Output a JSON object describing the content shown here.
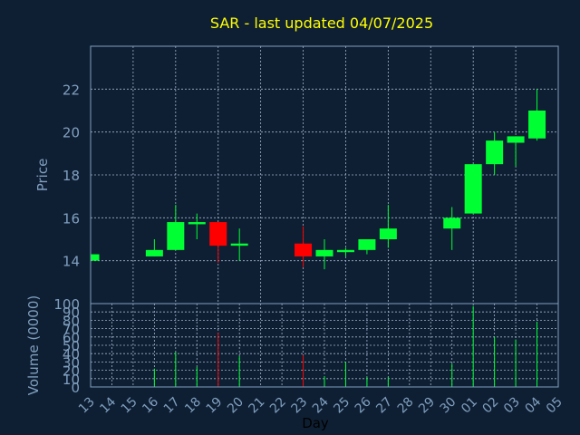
{
  "chart_data": {
    "type": "candlestick",
    "title": "SAR - last updated 04/07/2025",
    "xlabel": "Day",
    "ylabel_price": "Price",
    "ylabel_volume": "Volume (0000)",
    "x_ticks": [
      "13",
      "14",
      "15",
      "16",
      "17",
      "18",
      "19",
      "20",
      "21",
      "22",
      "23",
      "24",
      "25",
      "26",
      "27",
      "28",
      "29",
      "30",
      "01",
      "02",
      "03",
      "04",
      "05"
    ],
    "price_ylim": [
      12.0,
      24.0
    ],
    "price_yticks": [
      14,
      16,
      18,
      20,
      22
    ],
    "volume_ylim": [
      0,
      100
    ],
    "volume_yticks": [
      0,
      10,
      20,
      30,
      40,
      50,
      60,
      70,
      80,
      90,
      100
    ],
    "grid": true,
    "candles": [
      {
        "day": "13",
        "open": 14.0,
        "high": 14.3,
        "low": 14.0,
        "close": 14.3,
        "volume": 0
      },
      {
        "day": "16",
        "open": 14.2,
        "high": 15.0,
        "low": 14.2,
        "close": 14.5,
        "volume": 22
      },
      {
        "day": "17",
        "open": 14.5,
        "high": 16.6,
        "low": 14.5,
        "close": 15.8,
        "volume": 42
      },
      {
        "day": "18",
        "open": 15.7,
        "high": 16.2,
        "low": 15.0,
        "close": 15.8,
        "volume": 24
      },
      {
        "day": "19",
        "open": 15.8,
        "high": 15.8,
        "low": 13.9,
        "close": 14.7,
        "volume": 65
      },
      {
        "day": "20",
        "open": 14.7,
        "high": 15.5,
        "low": 14.0,
        "close": 14.8,
        "volume": 37
      },
      {
        "day": "23",
        "open": 14.8,
        "high": 15.6,
        "low": 13.7,
        "close": 14.2,
        "volume": 38
      },
      {
        "day": "24",
        "open": 14.2,
        "high": 15.0,
        "low": 13.6,
        "close": 14.5,
        "volume": 13
      },
      {
        "day": "25",
        "open": 14.4,
        "high": 14.6,
        "low": 14.2,
        "close": 14.5,
        "volume": 30
      },
      {
        "day": "26",
        "open": 14.5,
        "high": 15.0,
        "low": 14.3,
        "close": 15.0,
        "volume": 12
      },
      {
        "day": "27",
        "open": 15.0,
        "high": 16.6,
        "low": 14.6,
        "close": 15.5,
        "volume": 12
      },
      {
        "day": "30",
        "open": 15.5,
        "high": 16.5,
        "low": 14.5,
        "close": 16.0,
        "volume": 28
      },
      {
        "day": "01",
        "open": 16.2,
        "high": 18.5,
        "low": 16.2,
        "close": 18.5,
        "volume": 97
      },
      {
        "day": "02",
        "open": 18.5,
        "high": 20.0,
        "low": 18.0,
        "close": 19.6,
        "volume": 60
      },
      {
        "day": "03",
        "open": 19.5,
        "high": 19.8,
        "low": 18.4,
        "close": 19.8,
        "volume": 57
      },
      {
        "day": "04",
        "open": 19.7,
        "high": 22.0,
        "low": 19.6,
        "close": 21.0,
        "volume": 78
      }
    ],
    "colors": {
      "background": "#0f1f33",
      "up": "#00ff33",
      "down": "#ff0000",
      "title": "#ffff00",
      "axis_text": "#7f9fbf",
      "frame": "#7f9fbf",
      "grid": "#a0b4cc"
    }
  }
}
